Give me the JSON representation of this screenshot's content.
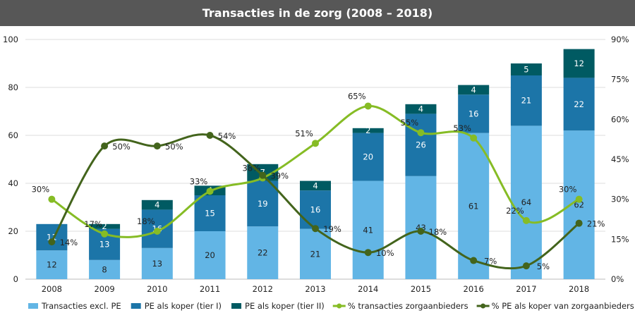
{
  "chart_data": {
    "type": "bar",
    "title": "Transacties in de zorg (2008 – 2018)",
    "categories": [
      "2008",
      "2009",
      "2010",
      "2011",
      "2012",
      "2013",
      "2014",
      "2015",
      "2016",
      "2017",
      "2018"
    ],
    "stacked": true,
    "ylim": [
      0,
      100
    ],
    "yticks": [
      0,
      20,
      40,
      60,
      80,
      100
    ],
    "y2lim": [
      0,
      90
    ],
    "y2ticks": [
      "0%",
      "15%",
      "30%",
      "45%",
      "60%",
      "75%",
      "90%"
    ],
    "grid": true,
    "legend": "bottom",
    "series": [
      {
        "name": "Transacties excl. PE",
        "type": "bar",
        "color": "#62b5e5",
        "values": [
          12,
          8,
          13,
          20,
          22,
          21,
          41,
          43,
          61,
          64,
          62
        ]
      },
      {
        "name": "PE als koper (tier I)",
        "type": "bar",
        "color": "#1c75a8",
        "values": [
          11,
          13,
          16,
          15,
          19,
          16,
          20,
          26,
          16,
          21,
          22
        ]
      },
      {
        "name": "PE als koper (tier II)",
        "type": "bar",
        "color": "#005a62",
        "values": [
          0,
          2,
          4,
          4,
          7,
          4,
          2,
          4,
          4,
          5,
          12
        ]
      },
      {
        "name": "% transacties zorgaanbieders",
        "type": "line",
        "axis": "right",
        "color": "#86bc25",
        "values": [
          30,
          17,
          18,
          33,
          38,
          51,
          65,
          55,
          53,
          22,
          30
        ]
      },
      {
        "name": "% PE als koper van zorgaanbieders",
        "type": "line",
        "axis": "right",
        "color": "#43641c",
        "values": [
          14,
          50,
          50,
          54,
          39,
          19,
          10,
          18,
          7,
          5,
          21
        ]
      }
    ]
  }
}
